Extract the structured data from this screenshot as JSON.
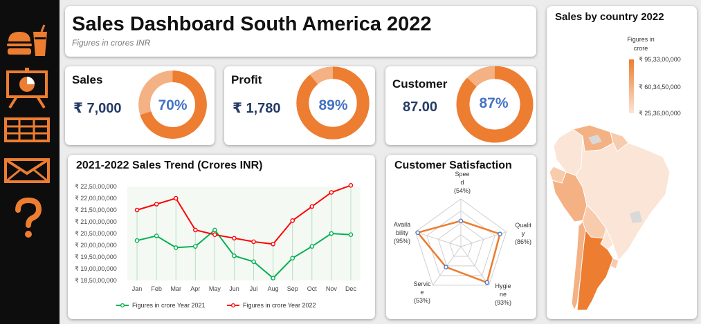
{
  "sidebar": {
    "items": [
      {
        "name": "food-icon"
      },
      {
        "name": "presentation-icon"
      },
      {
        "name": "table-icon"
      },
      {
        "name": "mail-icon"
      },
      {
        "name": "help-icon"
      }
    ]
  },
  "header": {
    "title": "Sales Dashboard South America 2022",
    "subtitle": "Figures in crores INR"
  },
  "kpis": [
    {
      "label": "Sales",
      "value": "₹ 7,000",
      "percent": 70,
      "percent_label": "70%"
    },
    {
      "label": "Profit",
      "value": "₹ 1,780",
      "percent": 89,
      "percent_label": "89%"
    },
    {
      "label": "Customer",
      "value": "87.00",
      "percent": 87,
      "percent_label": "87%"
    }
  ],
  "colors": {
    "accent": "#ed7d31",
    "accent_light": "#f4b183",
    "series_2021": "#00b050",
    "series_2022": "#ff0000",
    "kpi_value": "#243b66",
    "kpi_percent": "#4472c4"
  },
  "trend": {
    "title": "2021-2022 Sales Trend (Crores INR)"
  },
  "satisfaction": {
    "title": "Customer Satisfaction"
  },
  "map": {
    "title": "Sales by country 2022",
    "legend_title_1": "Figures in",
    "legend_title_2": "crore",
    "legend_max": "₹ 95,33,00,000",
    "legend_mid": "₹ 60,34,50,000",
    "legend_min": "₹ 25,36,00,000"
  },
  "chart_data": [
    {
      "type": "line",
      "title": "2021-2022 Sales Trend (Crores INR)",
      "categories": [
        "Jan",
        "Feb",
        "Mar",
        "Apr",
        "May",
        "Jun",
        "Jul",
        "Aug",
        "Sep",
        "Oct",
        "Nov",
        "Dec"
      ],
      "series": [
        {
          "name": "Figures in crore Year 2021",
          "values": [
            202000000,
            204000000,
            199000000,
            199500000,
            206500000,
            195500000,
            193000000,
            186000000,
            194500000,
            199500000,
            205000000,
            204500000
          ]
        },
        {
          "name": "Figures in crore Year 2022",
          "values": [
            215000000,
            217500000,
            220000000,
            206500000,
            204500000,
            203000000,
            201500000,
            200500000,
            210500000,
            216500000,
            222500000,
            225500000
          ]
        }
      ],
      "y_ticks": [
        "₹ 22,50,00,000",
        "₹ 22,00,00,000",
        "₹ 21,50,00,000",
        "₹ 21,00,00,000",
        "₹ 20,50,00,000",
        "₹ 20,00,00,000",
        "₹ 19,50,00,000",
        "₹ 19,00,00,000",
        "₹ 18,50,00,000"
      ],
      "ylim": [
        185000000,
        225000000
      ],
      "legend": "bottom"
    },
    {
      "type": "radar",
      "title": "Customer Satisfaction",
      "axes": [
        {
          "label_lines": [
            "Spee",
            "d",
            "(54%)"
          ],
          "value": 54
        },
        {
          "label_lines": [
            "Qualit",
            "y",
            "(86%)"
          ],
          "value": 86
        },
        {
          "label_lines": [
            "Hygie",
            "ne",
            "(93%)"
          ],
          "value": 93
        },
        {
          "label_lines": [
            "Servic",
            "e",
            "(53%)"
          ],
          "value": 53
        },
        {
          "label_lines": [
            "Availa",
            "bility",
            "(95%)"
          ],
          "value": 95
        }
      ],
      "rlim": [
        0,
        100
      ]
    }
  ]
}
